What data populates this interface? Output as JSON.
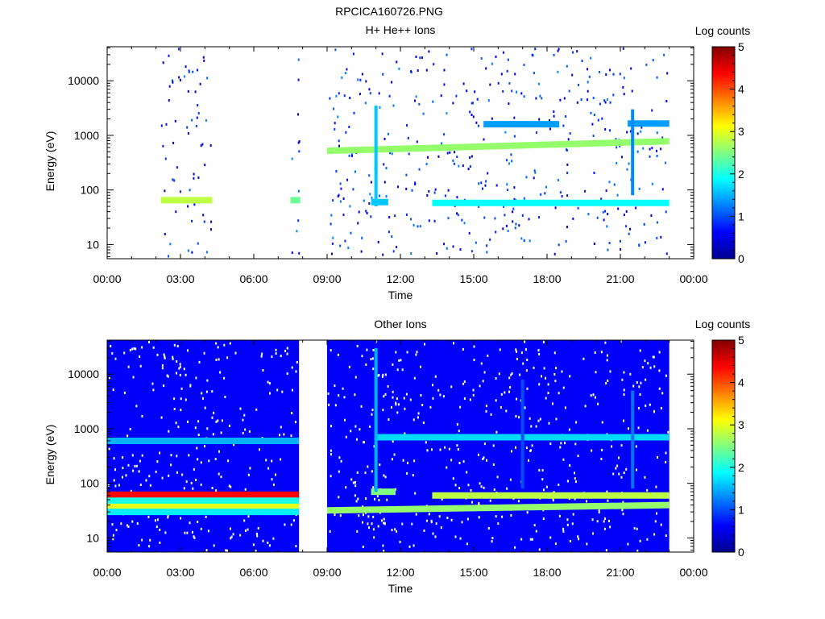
{
  "figure_title": "RPCICA160726.PNG",
  "chart_data": [
    {
      "type": "heatmap",
      "title": "H+ He++ Ions",
      "xlabel": "Time",
      "ylabel": "Energy (eV)",
      "x_ticks": [
        "00:00",
        "03:00",
        "06:00",
        "09:00",
        "12:00",
        "15:00",
        "18:00",
        "21:00",
        "00:00"
      ],
      "x_range_hours": [
        0,
        24
      ],
      "y_scale": "log",
      "y_ticks": [
        "10",
        "100",
        "1000",
        "10000"
      ],
      "y_range_eV": [
        5.5,
        42000
      ],
      "colorbar": {
        "label": "Log counts",
        "range": [
          0,
          5
        ],
        "ticks": [
          "0",
          "1",
          "2",
          "3",
          "4",
          "5"
        ],
        "colormap": "jet"
      },
      "data_intervals_hours": [
        [
          2.2,
          4.3
        ],
        [
          7.5,
          7.9
        ],
        [
          9.0,
          23.0
        ]
      ],
      "features": [
        {
          "name": "band",
          "t_start": 2.2,
          "t_end": 4.3,
          "energy_eV": 65,
          "log_counts": 2.8
        },
        {
          "name": "band",
          "t_start": 7.5,
          "t_end": 7.9,
          "energy_eV": 65,
          "log_counts": 2.4
        },
        {
          "name": "band",
          "t_start": 9.0,
          "t_end": 23.0,
          "energy_start_eV": 520,
          "energy_end_eV": 780,
          "log_counts": 2.6
        },
        {
          "name": "band",
          "t_start": 10.8,
          "t_end": 11.5,
          "energy_eV": 60,
          "log_counts": 1.6
        },
        {
          "name": "band",
          "t_start": 13.3,
          "t_end": 23.0,
          "energy_eV": 58,
          "log_counts": 1.9
        },
        {
          "name": "band",
          "t_start": 15.4,
          "t_end": 18.5,
          "energy_eV": 1600,
          "log_counts": 1.4
        },
        {
          "name": "band",
          "t_start": 21.3,
          "t_end": 23.0,
          "energy_eV": 1650,
          "log_counts": 1.4
        },
        {
          "name": "spike",
          "t": 11.0,
          "energy_min_eV": 50,
          "energy_max_eV": 3500,
          "log_counts": 1.6
        },
        {
          "name": "spike",
          "t": 21.5,
          "energy_min_eV": 80,
          "energy_max_eV": 3000,
          "log_counts": 1.3
        }
      ]
    },
    {
      "type": "heatmap",
      "title": "Other Ions",
      "xlabel": "Time",
      "ylabel": "Energy (eV)",
      "x_ticks": [
        "00:00",
        "03:00",
        "06:00",
        "09:00",
        "12:00",
        "15:00",
        "18:00",
        "21:00",
        "00:00"
      ],
      "x_range_hours": [
        0,
        24
      ],
      "y_scale": "log",
      "y_ticks": [
        "10",
        "100",
        "1000",
        "10000"
      ],
      "y_range_eV": [
        5.5,
        42000
      ],
      "colorbar": {
        "label": "Log counts",
        "range": [
          0,
          5
        ],
        "ticks": [
          "0",
          "1",
          "2",
          "3",
          "4",
          "5"
        ],
        "colormap": "jet"
      },
      "data_intervals_hours": [
        [
          0.0,
          7.85
        ],
        [
          9.0,
          23.0
        ]
      ],
      "features": [
        {
          "name": "background",
          "t_start": 0.0,
          "t_end": 7.85,
          "log_counts": 0.6
        },
        {
          "name": "band",
          "t_start": 0.0,
          "t_end": 7.85,
          "energy_eV": 62,
          "log_counts": 4.4
        },
        {
          "name": "band",
          "t_start": 0.0,
          "t_end": 7.85,
          "energy_eV": 48,
          "log_counts": 2.0
        },
        {
          "name": "band",
          "t_start": 0.0,
          "t_end": 7.85,
          "energy_eV": 37,
          "log_counts": 3.0
        },
        {
          "name": "band",
          "t_start": 0.0,
          "t_end": 7.85,
          "energy_eV": 30,
          "log_counts": 1.8
        },
        {
          "name": "band",
          "t_start": 0.0,
          "t_end": 7.85,
          "energy_eV": 600,
          "log_counts": 1.5
        },
        {
          "name": "band",
          "t_start": 9.0,
          "t_end": 23.0,
          "energy_start_eV": 32,
          "energy_end_eV": 40,
          "log_counts": 2.6
        },
        {
          "name": "band",
          "t_start": 10.8,
          "t_end": 11.8,
          "energy_eV": 70,
          "log_counts": 2.5
        },
        {
          "name": "band",
          "t_start": 13.3,
          "t_end": 23.0,
          "energy_eV": 60,
          "log_counts": 2.8
        },
        {
          "name": "band",
          "t_start": 11.0,
          "t_end": 23.0,
          "energy_eV": 700,
          "log_counts": 1.7
        },
        {
          "name": "spike",
          "t": 11.0,
          "energy_min_eV": 70,
          "energy_max_eV": 30000,
          "log_counts": 1.5
        },
        {
          "name": "spike",
          "t": 17.0,
          "energy_min_eV": 80,
          "energy_max_eV": 8000,
          "log_counts": 1.0
        },
        {
          "name": "spike",
          "t": 21.5,
          "energy_min_eV": 80,
          "energy_max_eV": 5000,
          "log_counts": 1.2
        }
      ]
    }
  ]
}
